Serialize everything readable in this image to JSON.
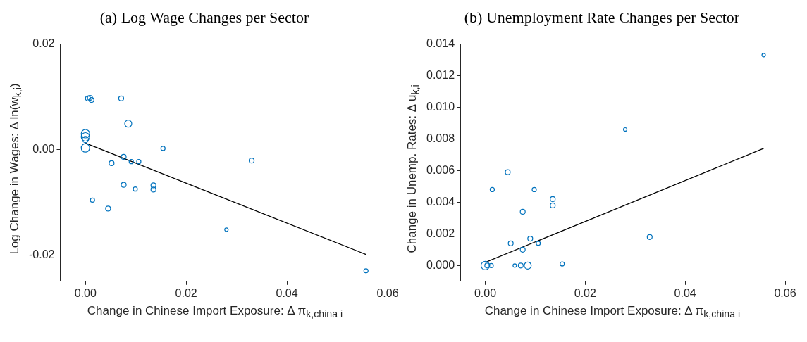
{
  "chart_data": [
    {
      "type": "bubble",
      "title": "(a) Log Wage Changes per Sector",
      "xlabel": "Change in Chinese Import Exposure: Δ π$_{k,china i}$",
      "ylabel": "Log Change in Wages: Δ ln(w$_{k,i}$)",
      "xlim": [
        -0.005,
        0.06
      ],
      "xticks": [
        {
          "value": 0,
          "label": "0.00"
        },
        {
          "value": 0.02,
          "label": "0.02"
        },
        {
          "value": 0.04,
          "label": "0.04"
        },
        {
          "value": 0.06,
          "label": "0.06"
        }
      ],
      "ylim": [
        -0.025,
        0.02
      ],
      "yticks": [
        {
          "value": -0.02,
          "label": "-0.02"
        },
        {
          "value": 0,
          "label": "0.00"
        },
        {
          "value": 0.02,
          "label": "0.02"
        }
      ],
      "series": [
        {
          "color": "#0072bd",
          "x": [
            0.0005,
            0.0009,
            0.0012,
            0.0071,
            0.0085,
            0,
            0,
            0,
            0,
            0.0154,
            0.0076,
            0.0052,
            0.0091,
            0.0106,
            0.0076,
            0.0099,
            0.0135,
            0.0135,
            0.0014,
            0.0045,
            0.033,
            0.028,
            0.0557
          ],
          "values": [
            0.0097,
            0.0098,
            0.0094,
            0.0097,
            0.0049,
            0.003,
            0.0024,
            0.0019,
            0.0003,
            0.0002,
            -0.0014,
            -0.0026,
            -0.0023,
            -0.0023,
            -0.0067,
            -0.0075,
            -0.0068,
            -0.0076,
            -0.0096,
            -0.0112,
            -0.0021,
            -0.0152,
            -0.023
          ],
          "sizes": [
            0.34,
            0.34,
            0.34,
            0.34,
            0.69,
            1,
            1,
            0.56,
            1,
            0.25,
            0.34,
            0.34,
            0.25,
            0.25,
            0.34,
            0.25,
            0.34,
            0.34,
            0.25,
            0.34,
            0.34,
            0.17,
            0.25
          ]
        },
        {
          "type": "line",
          "color": "#000000",
          "x": [
            0,
            0.0557
          ],
          "values": [
            0.0012,
            -0.0199
          ]
        }
      ]
    },
    {
      "type": "bubble",
      "title": "(b) Unemployment Rate Changes per Sector",
      "xlabel": "Change in Chinese Import Exposure: Δ π$_{k,china i}$",
      "ylabel": "Change in Unemp. Rates: Δ u$_{k,i}$",
      "xlim": [
        -0.005,
        0.06
      ],
      "xticks": [
        {
          "value": 0,
          "label": "0.00"
        },
        {
          "value": 0.02,
          "label": "0.02"
        },
        {
          "value": 0.04,
          "label": "0.04"
        },
        {
          "value": 0.06,
          "label": "0.06"
        }
      ],
      "ylim": [
        -0.001,
        0.014
      ],
      "yticks": [
        {
          "value": 0,
          "label": "0.000"
        },
        {
          "value": 0.002,
          "label": "0.002"
        },
        {
          "value": 0.004,
          "label": "0.004"
        },
        {
          "value": 0.006,
          "label": "0.006"
        },
        {
          "value": 0.008,
          "label": "0.008"
        },
        {
          "value": 0.01,
          "label": "0.010"
        },
        {
          "value": 0.012,
          "label": "0.012"
        },
        {
          "value": 0.014,
          "label": "0.014"
        }
      ],
      "series": [
        {
          "color": "#0072bd",
          "x": [
            0.0045,
            0.0014,
            0.0098,
            0.0135,
            0.0135,
            0.0075,
            0.0051,
            0.009,
            0.0106,
            0.0075,
            0,
            0.0004,
            0.0012,
            0.0059,
            0.0071,
            0.0085,
            0.0154,
            0.0557,
            0.028,
            0.0329
          ],
          "values": [
            0.0059,
            0.0048,
            0.0048,
            0.0042,
            0.0038,
            0.0034,
            0.0014,
            0.0017,
            0.0014,
            0.001,
            0,
            0,
            0,
            0,
            0,
            0,
            0.0001,
            0.0133,
            0.0086,
            0.0018
          ],
          "sizes": [
            0.34,
            0.25,
            0.25,
            0.34,
            0.34,
            0.34,
            0.34,
            0.34,
            0.25,
            0.34,
            1,
            0.34,
            0.25,
            0.17,
            0.34,
            0.69,
            0.25,
            0.17,
            0.17,
            0.34
          ]
        },
        {
          "type": "line",
          "color": "#000000",
          "x": [
            0,
            0.0557
          ],
          "values": [
            0.0002,
            0.0074
          ]
        }
      ]
    }
  ]
}
